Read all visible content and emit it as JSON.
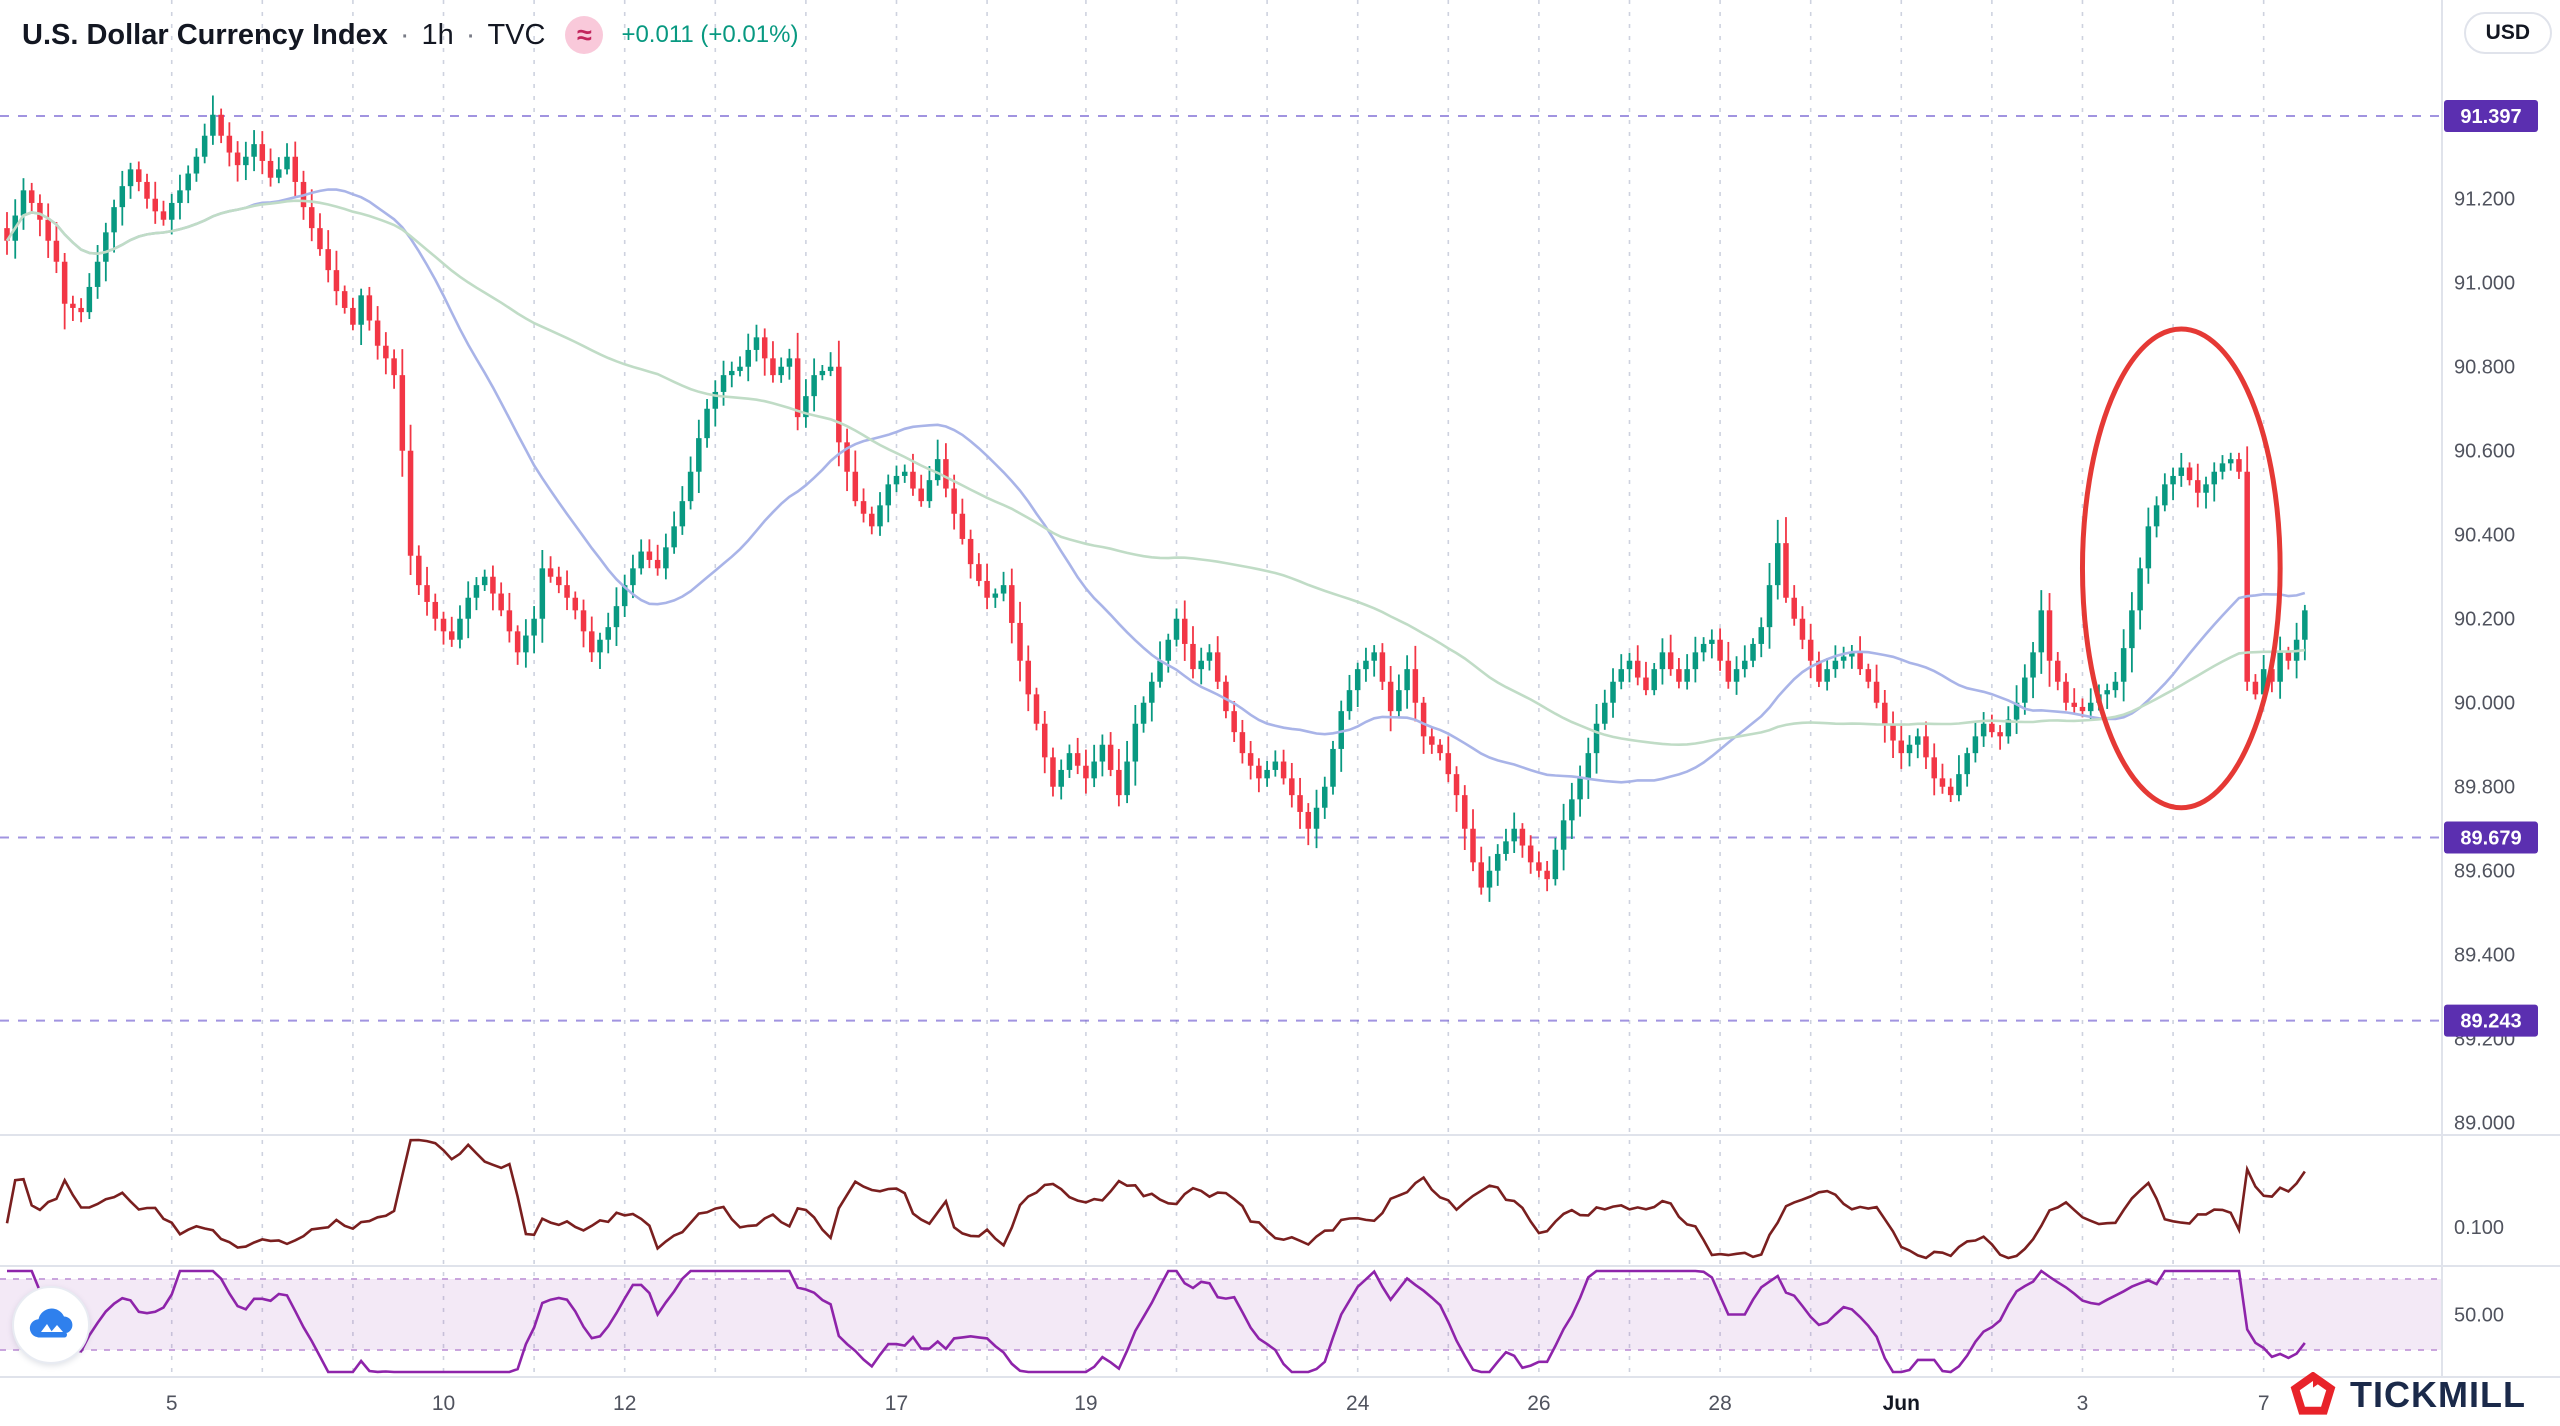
{
  "header": {
    "symbol_title": "U.S. Dollar Currency Index",
    "separator": "·",
    "interval": "1h",
    "exchange": "TVC",
    "badge_icon": "≈",
    "change_text": "+0.011 (+0.01%)",
    "change_color": "#089981"
  },
  "top_right": {
    "currency_button": "USD"
  },
  "footer": {
    "brand": "TICKMILL"
  },
  "colors": {
    "up": "#089981",
    "down": "#f23645",
    "ma_fast": "#a9b4e8",
    "ma_slow": "#c0dcc6",
    "grid": "#c2c8d8",
    "level_line": "#6f5bd0",
    "level_badge": "#5b2fb0",
    "axis_text": "#50535e",
    "month_text": "#131722",
    "separator_line": "#e0e3eb",
    "atr_line": "#7a1f1f",
    "rsi_line": "#8e24aa",
    "rsi_band": "rgba(142,36,170,0.10)",
    "rsi_band_edge": "#c39ad9",
    "annotation": "#e53935"
  },
  "price_axis": {
    "ticks": [
      "91.200",
      "91.000",
      "90.800",
      "90.600",
      "90.400",
      "90.200",
      "90.000",
      "89.800",
      "89.600",
      "89.400",
      "89.200",
      "89.000"
    ],
    "levels": [
      {
        "label": "91.397",
        "value": 91.397
      },
      {
        "label": "89.679",
        "value": 89.679
      },
      {
        "label": "89.243",
        "value": 89.243
      }
    ]
  },
  "time_axis": {
    "labels": [
      {
        "i": 20,
        "label": "5"
      },
      {
        "i": 53,
        "label": "10"
      },
      {
        "i": 75,
        "label": "12"
      },
      {
        "i": 108,
        "label": "17"
      },
      {
        "i": 131,
        "label": "19"
      },
      {
        "i": 164,
        "label": "24"
      },
      {
        "i": 186,
        "label": "26"
      },
      {
        "i": 208,
        "label": "28"
      },
      {
        "i": 230,
        "label": "Jun",
        "month": true
      },
      {
        "i": 252,
        "label": "3"
      },
      {
        "i": 274,
        "label": "7"
      }
    ],
    "minor": [
      31,
      42,
      64,
      86,
      97,
      119,
      142,
      153,
      175,
      197,
      219,
      241,
      263
    ]
  },
  "chart_data": {
    "type": "candlestick",
    "title": "U.S. Dollar Currency Index",
    "interval": "1h",
    "exchange": "TVC",
    "y_range": [
      88.95,
      91.45
    ],
    "levels": [
      91.397,
      89.679,
      89.243
    ],
    "closes": [
      91.1,
      91.16,
      91.22,
      91.19,
      91.15,
      91.1,
      91.05,
      90.95,
      90.94,
      90.93,
      90.99,
      91.05,
      91.12,
      91.18,
      91.23,
      91.27,
      91.24,
      91.2,
      91.17,
      91.15,
      91.19,
      91.22,
      91.26,
      91.3,
      91.35,
      91.4,
      91.35,
      91.31,
      91.28,
      91.3,
      91.33,
      91.29,
      91.25,
      91.27,
      91.3,
      91.24,
      91.18,
      91.13,
      91.08,
      91.03,
      90.98,
      90.94,
      90.9,
      90.97,
      90.91,
      90.85,
      90.82,
      90.78,
      90.6,
      90.35,
      90.28,
      90.24,
      90.2,
      90.17,
      90.15,
      90.2,
      90.25,
      90.28,
      90.3,
      90.26,
      90.22,
      90.17,
      90.12,
      90.16,
      90.2,
      90.32,
      90.3,
      90.28,
      90.25,
      90.22,
      90.17,
      90.12,
      90.15,
      90.18,
      90.23,
      90.28,
      90.32,
      90.36,
      90.34,
      90.32,
      90.37,
      90.42,
      90.48,
      90.55,
      90.63,
      90.7,
      90.74,
      90.78,
      90.79,
      90.8,
      90.84,
      90.87,
      90.82,
      90.78,
      90.8,
      90.82,
      90.68,
      90.73,
      90.78,
      90.79,
      90.8,
      90.62,
      90.55,
      90.48,
      90.45,
      90.42,
      90.47,
      90.52,
      90.54,
      90.55,
      90.51,
      90.48,
      90.53,
      90.58,
      90.51,
      90.45,
      90.39,
      90.33,
      90.29,
      90.25,
      90.26,
      90.28,
      90.19,
      90.1,
      90.02,
      89.95,
      89.87,
      89.8,
      89.84,
      89.88,
      89.85,
      89.82,
      89.86,
      89.9,
      89.84,
      89.78,
      89.86,
      89.95,
      90.0,
      90.05,
      90.1,
      90.15,
      90.2,
      90.14,
      90.08,
      90.1,
      90.12,
      90.05,
      89.98,
      89.93,
      89.88,
      89.85,
      89.82,
      89.84,
      89.86,
      89.82,
      89.78,
      89.74,
      89.7,
      89.75,
      89.8,
      89.89,
      89.98,
      90.03,
      90.08,
      90.1,
      90.12,
      90.05,
      89.98,
      90.03,
      90.08,
      90.0,
      89.92,
      89.9,
      89.88,
      89.83,
      89.78,
      89.7,
      89.62,
      89.56,
      89.6,
      89.64,
      89.67,
      89.7,
      89.66,
      89.62,
      89.6,
      89.58,
      89.65,
      89.72,
      89.77,
      89.82,
      89.88,
      89.95,
      90.0,
      90.05,
      90.08,
      90.1,
      90.06,
      90.03,
      90.08,
      90.12,
      90.08,
      90.05,
      90.08,
      90.12,
      90.14,
      90.15,
      90.1,
      90.05,
      90.08,
      90.1,
      90.14,
      90.18,
      90.28,
      90.38,
      90.25,
      90.2,
      90.15,
      90.1,
      90.05,
      90.08,
      90.1,
      90.11,
      90.12,
      90.08,
      90.05,
      90.0,
      89.95,
      89.91,
      89.88,
      89.9,
      89.92,
      89.87,
      89.82,
      89.8,
      89.78,
      89.83,
      89.88,
      89.92,
      89.95,
      89.93,
      89.92,
      89.96,
      90.0,
      90.06,
      90.12,
      90.22,
      90.1,
      90.05,
      90.0,
      89.99,
      89.98,
      90.0,
      90.02,
      90.03,
      90.05,
      90.13,
      90.22,
      90.32,
      90.42,
      90.47,
      90.52,
      90.54,
      90.56,
      90.53,
      90.5,
      90.52,
      90.55,
      90.57,
      90.58,
      90.55,
      90.05,
      90.02,
      90.08,
      90.05,
      90.12,
      90.1,
      90.15,
      90.22
    ],
    "ma_fast_window": 30,
    "ma_slow_window": 80,
    "indicators": [
      {
        "name": "atr",
        "derive": "atr14",
        "axis_label": "0.100",
        "axis_value": 0.1
      },
      {
        "name": "rsi",
        "derive": "rsi14",
        "axis_label": "50.00",
        "axis_value": 50,
        "band": [
          30,
          70
        ]
      }
    ],
    "annotation": {
      "type": "ellipse",
      "center_bar": 264,
      "center_price": 90.32,
      "rx_bars": 12,
      "ry_price": 0.57
    }
  }
}
